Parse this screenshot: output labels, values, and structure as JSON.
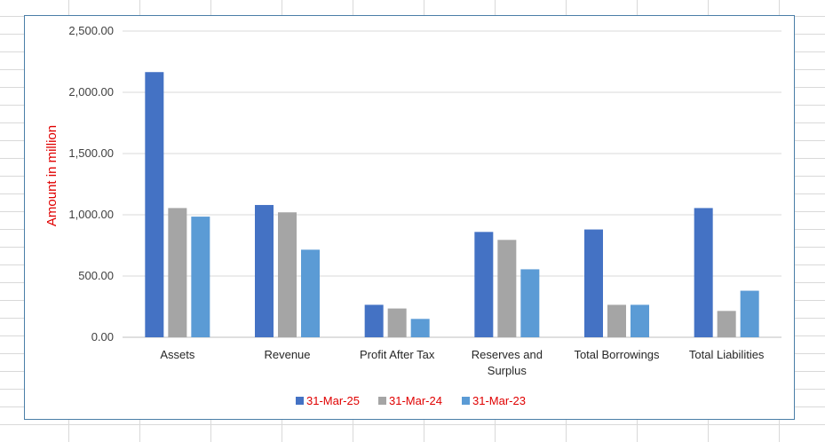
{
  "chart_data": {
    "type": "bar",
    "title": "",
    "xlabel": "",
    "ylabel": "Amount in million",
    "ylim": [
      0,
      2500
    ],
    "yticks": [
      "0.00",
      "500.00",
      "1,000.00",
      "1,500.00",
      "2,000.00",
      "2,500.00"
    ],
    "categories": [
      [
        "Assets"
      ],
      [
        "Revenue"
      ],
      [
        "Profit After Tax"
      ],
      [
        "Reserves and",
        "Surplus"
      ],
      [
        "Total Borrowings"
      ],
      [
        "Total Liabilities"
      ]
    ],
    "series": [
      {
        "name": "31-Mar-25",
        "color": "#4472c4",
        "values": [
          2165,
          1080,
          265,
          860,
          880,
          1055
        ]
      },
      {
        "name": "31-Mar-24",
        "color": "#a5a5a5",
        "values": [
          1055,
          1020,
          235,
          795,
          265,
          215
        ]
      },
      {
        "name": "31-Mar-23",
        "color": "#5b9bd5",
        "values": [
          985,
          715,
          150,
          555,
          265,
          380
        ]
      }
    ],
    "grid": true,
    "legend_position": "bottom"
  }
}
